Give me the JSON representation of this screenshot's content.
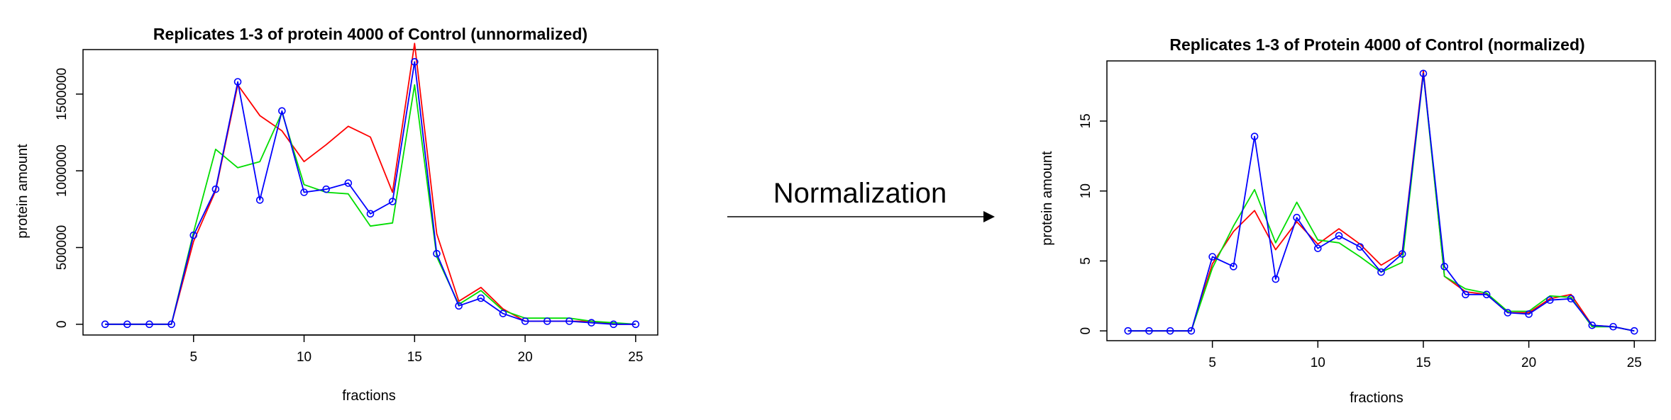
{
  "arrow": {
    "label": "Normalization"
  },
  "chart_data": [
    {
      "type": "line",
      "title": "Replicates 1-3 of protein 4000 of Control (unnormalized)",
      "xlabel": "fractions",
      "ylabel": "protein amount",
      "xlim": [
        0,
        26
      ],
      "ylim": [
        -70000,
        1790000
      ],
      "xticks": [
        5,
        10,
        15,
        20,
        25
      ],
      "yticks": [
        0,
        500000,
        1000000,
        1500000
      ],
      "ytick_labels": [
        "0",
        "500000",
        "1000000",
        "1500000"
      ],
      "grid": false,
      "x": [
        1,
        2,
        3,
        4,
        5,
        6,
        7,
        8,
        9,
        10,
        11,
        12,
        13,
        14,
        15,
        16,
        17,
        18,
        19,
        20,
        21,
        22,
        23,
        24,
        25
      ],
      "series": [
        {
          "color": "#ff0000",
          "marker": false,
          "values": [
            0,
            0,
            0,
            0,
            540000,
            870000,
            1560000,
            1360000,
            1260000,
            1060000,
            1170000,
            1290000,
            1220000,
            860000,
            1830000,
            590000,
            150000,
            240000,
            100000,
            20000,
            20000,
            20000,
            20000,
            0,
            0
          ]
        },
        {
          "color": "#00dd00",
          "marker": false,
          "values": [
            0,
            0,
            0,
            0,
            600000,
            1140000,
            1020000,
            1060000,
            1380000,
            910000,
            860000,
            850000,
            640000,
            660000,
            1560000,
            440000,
            130000,
            220000,
            90000,
            40000,
            40000,
            40000,
            20000,
            10000,
            0
          ]
        },
        {
          "color": "#0000ff",
          "marker": true,
          "values": [
            0,
            0,
            0,
            0,
            580000,
            880000,
            1580000,
            810000,
            1390000,
            860000,
            880000,
            920000,
            720000,
            800000,
            1710000,
            460000,
            120000,
            170000,
            70000,
            20000,
            20000,
            20000,
            10000,
            0,
            0
          ]
        }
      ]
    },
    {
      "type": "line",
      "title": "Replicates 1-3 of Protein 4000 of Control (normalized)",
      "xlabel": "fractions",
      "ylabel": "protein amount",
      "xlim": [
        0,
        26
      ],
      "ylim": [
        -0.7,
        19.3
      ],
      "xticks": [
        5,
        10,
        15,
        20,
        25
      ],
      "yticks": [
        0,
        5,
        10,
        15
      ],
      "ytick_labels": [
        "0",
        "5",
        "10",
        "15"
      ],
      "grid": false,
      "x": [
        1,
        2,
        3,
        4,
        5,
        6,
        7,
        8,
        9,
        10,
        11,
        12,
        13,
        14,
        15,
        16,
        17,
        18,
        19,
        20,
        21,
        22,
        23,
        24,
        25
      ],
      "series": [
        {
          "color": "#ff0000",
          "marker": false,
          "values": [
            0,
            0,
            0,
            0,
            4.8,
            7.1,
            8.6,
            5.8,
            7.8,
            6.2,
            7.3,
            6.2,
            4.7,
            5.6,
            18.6,
            3.9,
            2.8,
            2.6,
            1.3,
            1.3,
            2.3,
            2.6,
            0.4,
            0.3,
            0
          ]
        },
        {
          "color": "#00dd00",
          "marker": false,
          "values": [
            0,
            0,
            0,
            0,
            4.5,
            7.5,
            10.1,
            6.3,
            9.2,
            6.5,
            6.3,
            5.3,
            4.2,
            4.9,
            18.4,
            3.9,
            3.0,
            2.7,
            1.4,
            1.4,
            2.5,
            2.4,
            0.3,
            0.3,
            0
          ]
        },
        {
          "color": "#0000ff",
          "marker": true,
          "values": [
            0,
            0,
            0,
            0,
            5.3,
            4.6,
            13.9,
            3.7,
            8.1,
            5.9,
            6.8,
            6.0,
            4.2,
            5.5,
            18.4,
            4.6,
            2.6,
            2.6,
            1.3,
            1.2,
            2.2,
            2.3,
            0.4,
            0.3,
            0
          ]
        }
      ]
    }
  ]
}
